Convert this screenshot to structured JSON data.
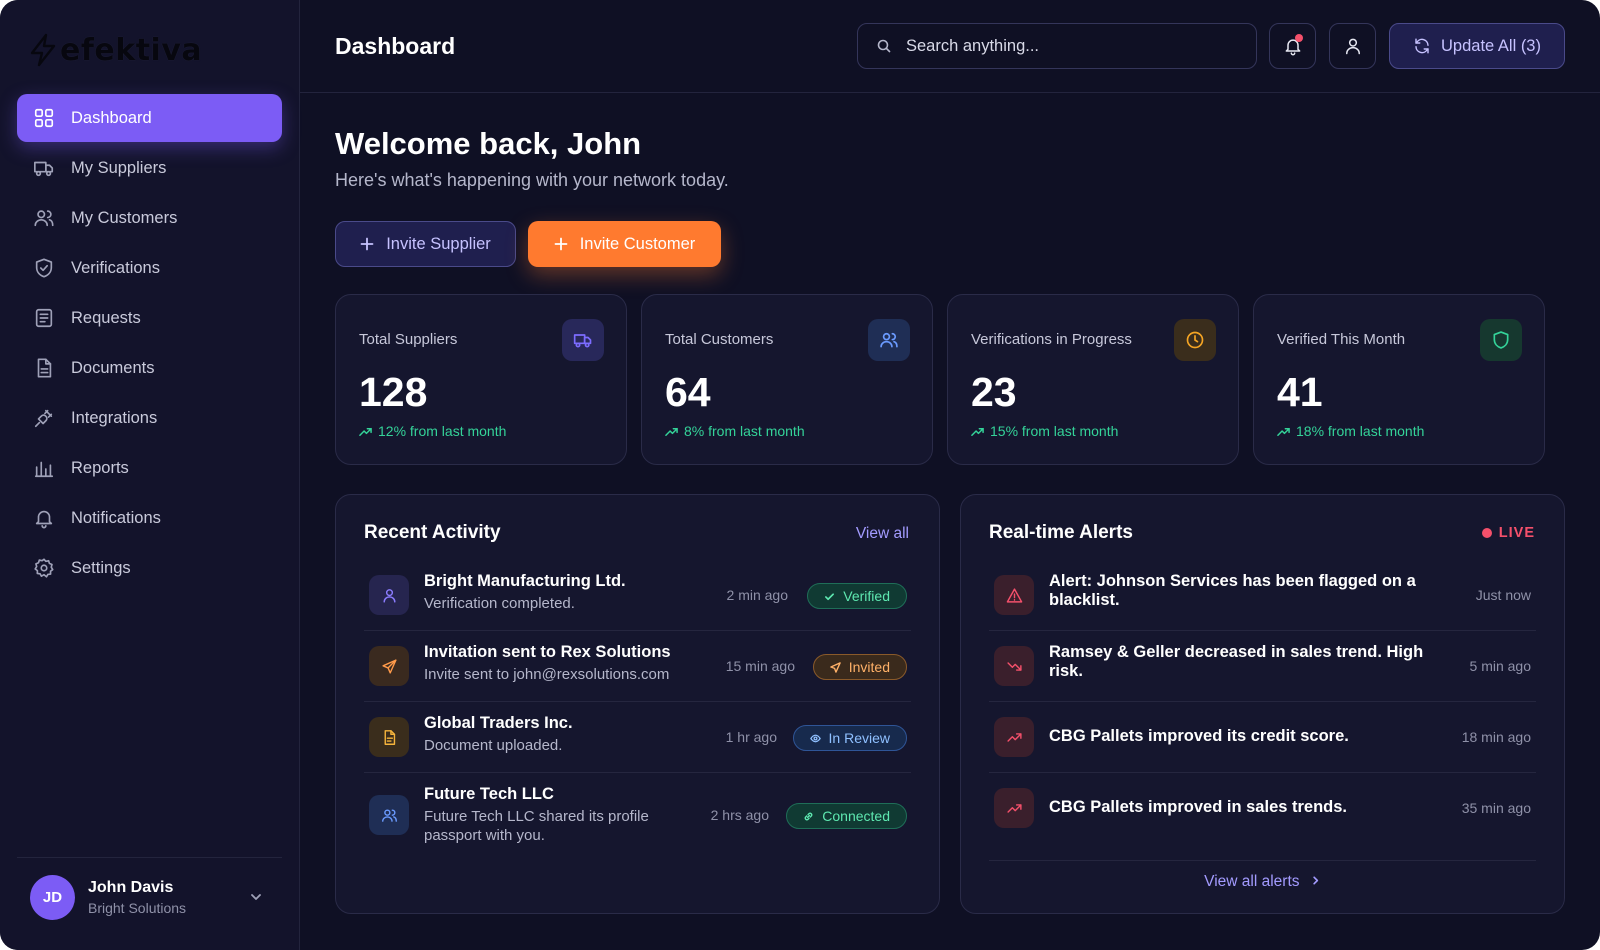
{
  "brand": {
    "name": "efektiva"
  },
  "sidebar": {
    "items": [
      {
        "label": "Dashboard",
        "icon": "grid-icon",
        "active": true
      },
      {
        "label": "My Suppliers",
        "icon": "truck-icon"
      },
      {
        "label": "My Customers",
        "icon": "users-icon"
      },
      {
        "label": "Verifications",
        "icon": "shield-icon"
      },
      {
        "label": "Requests",
        "icon": "clipboard-icon"
      },
      {
        "label": "Documents",
        "icon": "file-icon"
      },
      {
        "label": "Integrations",
        "icon": "plug-icon"
      },
      {
        "label": "Reports",
        "icon": "bar-chart-icon"
      },
      {
        "label": "Notifications",
        "icon": "bell-icon"
      },
      {
        "label": "Settings",
        "icon": "gear-icon"
      }
    ],
    "user": {
      "initials": "JD",
      "name": "John Davis",
      "org": "Bright Solutions"
    }
  },
  "header": {
    "title": "Dashboard",
    "search_placeholder": "Search anything...",
    "update_label": "Update All (3)"
  },
  "welcome": {
    "title": "Welcome back, John",
    "subtitle": "Here's what's happening with your network today."
  },
  "actions": {
    "invite_supplier": "Invite Supplier",
    "invite_customer": "Invite Customer"
  },
  "stats": [
    {
      "label": "Total Suppliers",
      "value": "128",
      "delta": "12% from last month",
      "icon": "truck-icon",
      "color": "#7c6cff"
    },
    {
      "label": "Total Customers",
      "value": "64",
      "delta": "8% from last month",
      "icon": "users-icon",
      "color": "#6b9bff"
    },
    {
      "label": "Verifications in Progress",
      "value": "23",
      "delta": "15% from last month",
      "icon": "clock-icon",
      "color": "#f5a524"
    },
    {
      "label": "Verified This Month",
      "value": "41",
      "delta": "18% from last month",
      "icon": "shield-icon",
      "color": "#34d399"
    }
  ],
  "activity": {
    "title": "Recent Activity",
    "view_all": "View all",
    "items": [
      {
        "title": "Bright Manufacturing Ltd.",
        "sub": "Verification completed.",
        "time": "2 min ago",
        "badge": "Verified",
        "icon": "user-icon"
      },
      {
        "title": "Invitation sent to Rex Solutions",
        "sub": "Invite sent to john@rexsolutions.com",
        "time": "15 min ago",
        "badge": "Invited",
        "icon": "send-icon"
      },
      {
        "title": "Global Traders Inc.",
        "sub": "Document uploaded.",
        "time": "1 hr ago",
        "badge": "In Review",
        "icon": "file-icon"
      },
      {
        "title": "Future Tech LLC",
        "sub": "Future Tech LLC shared its profile passport with you.",
        "time": "2 hrs ago",
        "badge": "Connected",
        "icon": "users-icon"
      }
    ]
  },
  "alerts": {
    "title": "Real-time Alerts",
    "live": "LIVE",
    "view_all": "View all alerts",
    "items": [
      {
        "text": "Alert: Johnson Services has been flagged on a blacklist.",
        "time": "Just now",
        "icon": "warning-icon"
      },
      {
        "text": "Ramsey & Geller decreased in sales trend. High risk.",
        "time": "5 min ago",
        "icon": "trend-down-icon"
      },
      {
        "text": "CBG Pallets improved its credit score.",
        "time": "18 min ago",
        "icon": "trend-up-icon"
      },
      {
        "text": "CBG Pallets improved in sales trends.",
        "time": "35 min ago",
        "icon": "trend-up-icon"
      }
    ]
  }
}
